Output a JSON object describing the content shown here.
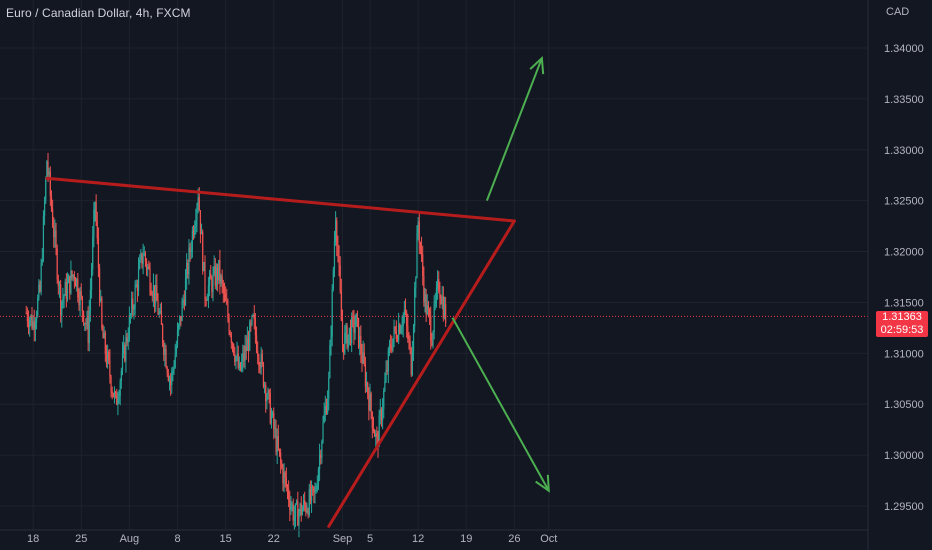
{
  "header": {
    "title": "Euro / Canadian Dollar, 4h, FXCM"
  },
  "price_scale": {
    "unit": "CAD"
  },
  "current": {
    "price": "1.31363",
    "countdown": "02:59:53"
  },
  "colors": {
    "background": "#131722",
    "up": "#26a69a",
    "down": "#ef5350",
    "trendline": "#b71c1c",
    "arrow": "#4caf50",
    "price_line": "#f23645"
  },
  "chart_data": {
    "type": "candlestick",
    "title": "Euro / Canadian Dollar, 4h, FXCM",
    "y_ticks": [
      "1.34000",
      "1.33500",
      "1.33000",
      "1.32500",
      "1.32000",
      "1.31500",
      "1.31000",
      "1.30500",
      "1.30000",
      "1.29500"
    ],
    "x_ticks": [
      "18",
      "25",
      "Aug",
      "8",
      "15",
      "22",
      "Sep",
      "5",
      "12",
      "19",
      "26",
      "Oct"
    ],
    "ylim": [
      1.2935,
      1.344
    ],
    "last_price": 1.31363,
    "price_path": [
      {
        "x": "Jul 17",
        "y": 1.314
      },
      {
        "x": "Jul 18",
        "y": 1.313
      },
      {
        "x": "Jul 19",
        "y": 1.316
      },
      {
        "x": "Jul 20",
        "y": 1.329
      },
      {
        "x": "Jul 22",
        "y": 1.315
      },
      {
        "x": "Jul 24",
        "y": 1.318
      },
      {
        "x": "Jul 26",
        "y": 1.312
      },
      {
        "x": "Jul 27",
        "y": 1.325
      },
      {
        "x": "Jul 28",
        "y": 1.312
      },
      {
        "x": "Jul 30",
        "y": 1.305
      },
      {
        "x": "Aug 1",
        "y": 1.313
      },
      {
        "x": "Aug 3",
        "y": 1.32
      },
      {
        "x": "Aug 5",
        "y": 1.315
      },
      {
        "x": "Aug 7",
        "y": 1.307
      },
      {
        "x": "Aug 9",
        "y": 1.316
      },
      {
        "x": "Aug 11",
        "y": 1.326
      },
      {
        "x": "Aug 12",
        "y": 1.316
      },
      {
        "x": "Aug 14",
        "y": 1.318
      },
      {
        "x": "Aug 17",
        "y": 1.308
      },
      {
        "x": "Aug 19",
        "y": 1.313
      },
      {
        "x": "Aug 21",
        "y": 1.306
      },
      {
        "x": "Aug 23",
        "y": 1.299
      },
      {
        "x": "Aug 25",
        "y": 1.294
      },
      {
        "x": "Aug 28",
        "y": 1.296
      },
      {
        "x": "Aug 29",
        "y": 1.302
      },
      {
        "x": "Aug 30",
        "y": 1.307
      },
      {
        "x": "Aug 31",
        "y": 1.324
      },
      {
        "x": "Sep 1",
        "y": 1.311
      },
      {
        "x": "Sep 3",
        "y": 1.313
      },
      {
        "x": "Sep 5",
        "y": 1.305
      },
      {
        "x": "Sep 6",
        "y": 1.301
      },
      {
        "x": "Sep 8",
        "y": 1.311
      },
      {
        "x": "Sep 10",
        "y": 1.314
      },
      {
        "x": "Sep 11",
        "y": 1.309
      },
      {
        "x": "Sep 12",
        "y": 1.323
      },
      {
        "x": "Sep 13",
        "y": 1.315
      },
      {
        "x": "Sep 14",
        "y": 1.312
      },
      {
        "x": "Sep 15",
        "y": 1.317
      },
      {
        "x": "Sep 16",
        "y": 1.3136
      }
    ],
    "annotations": [
      {
        "type": "trendline",
        "from": {
          "x": "Jul 20",
          "y": 1.3272
        },
        "to": {
          "x": "Sep 26",
          "y": 1.323
        }
      },
      {
        "type": "trendline",
        "from": {
          "x": "Aug 30",
          "y": 1.293
        },
        "to": {
          "x": "Sep 26",
          "y": 1.323
        }
      },
      {
        "type": "arrow",
        "direction": "up",
        "from": {
          "x": "Sep 22",
          "y": 1.325
        },
        "to": {
          "x": "Sep 30",
          "y": 1.339
        }
      },
      {
        "type": "arrow",
        "direction": "down",
        "from": {
          "x": "Sep 17",
          "y": 1.3135
        },
        "to": {
          "x": "Oct 1",
          "y": 1.2965
        }
      }
    ]
  }
}
